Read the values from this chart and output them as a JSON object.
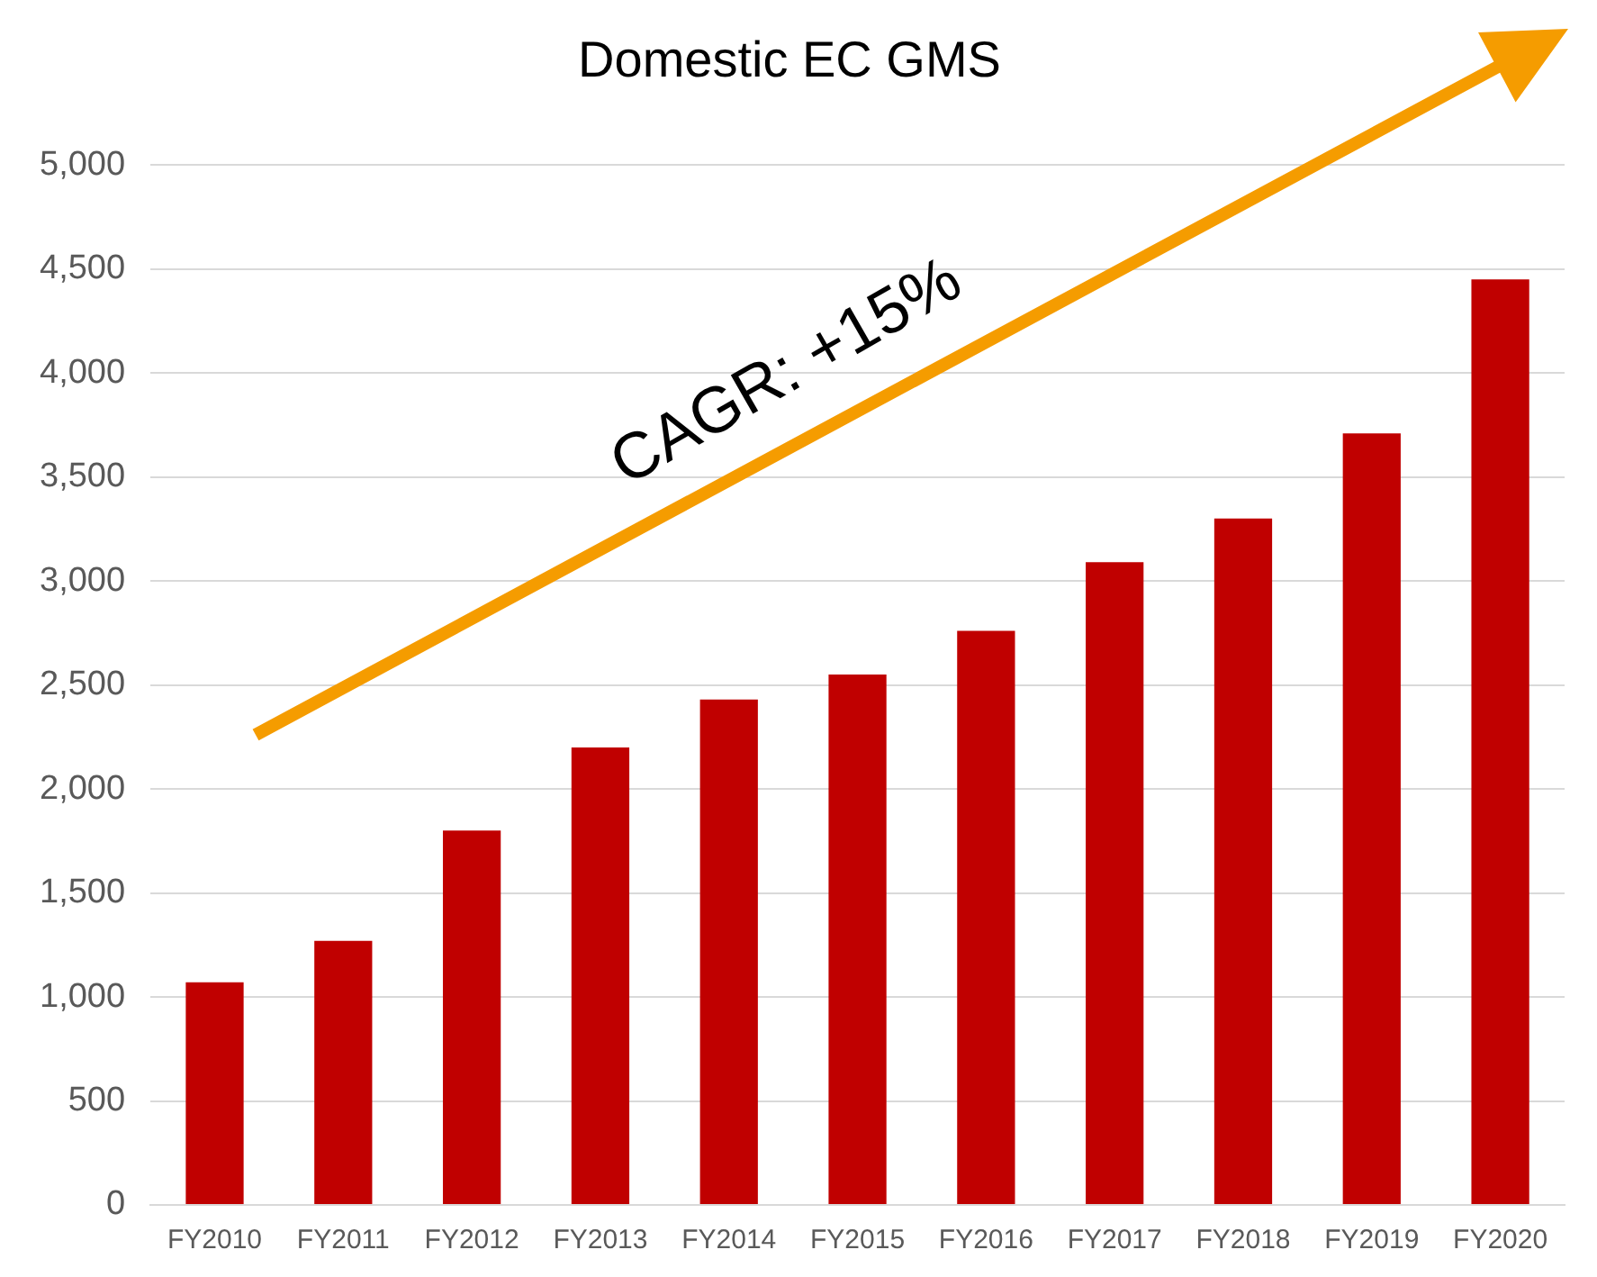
{
  "chart_data": {
    "type": "bar",
    "title": "Domestic EC GMS",
    "categories": [
      "FY2010",
      "FY2011",
      "FY2012",
      "FY2013",
      "FY2014",
      "FY2015",
      "FY2016",
      "FY2017",
      "FY2018",
      "FY2019",
      "FY2020"
    ],
    "values": [
      1070,
      1270,
      1800,
      2200,
      2430,
      2550,
      2760,
      3090,
      3300,
      3710,
      4450
    ],
    "color": "#c00000",
    "ylim": [
      0,
      5000
    ],
    "yticks": [
      0,
      500,
      {
        "value": 1000,
        "label": "1,000"
      },
      {
        "value": 1500,
        "label": "1,500"
      },
      {
        "value": 2000,
        "label": "2,000"
      },
      {
        "value": 2500,
        "label": "2,500"
      },
      {
        "value": 3000,
        "label": "3,000"
      },
      {
        "value": 3500,
        "label": "3,500"
      },
      {
        "value": 4000,
        "label": "4,000"
      },
      {
        "value": 4500,
        "label": "4,500"
      },
      {
        "value": 5000,
        "label": "5,000"
      }
    ],
    "grid": "y",
    "annotations": [
      "CAGR: +15%"
    ]
  }
}
